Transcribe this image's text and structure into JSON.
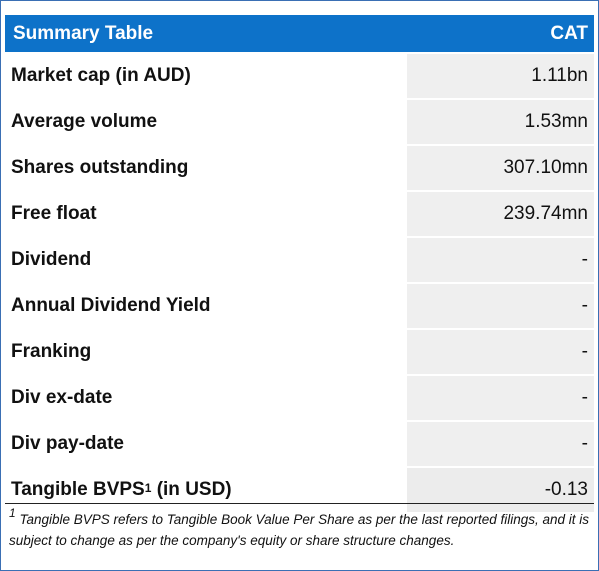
{
  "header": {
    "title": "Summary Table",
    "ticker": "CAT"
  },
  "rows": [
    {
      "label": "Market cap (in AUD)",
      "value": "1.11bn"
    },
    {
      "label": "Average volume",
      "value": "1.53mn"
    },
    {
      "label": "Shares outstanding",
      "value": "307.10mn"
    },
    {
      "label": "Free float",
      "value": "239.74mn"
    },
    {
      "label": "Dividend",
      "value": "-"
    },
    {
      "label": "Annual Dividend Yield",
      "value": "-"
    },
    {
      "label": "Franking",
      "value": "-"
    },
    {
      "label": "Div ex-date",
      "value": "-"
    },
    {
      "label": "Div pay-date",
      "value": "-"
    },
    {
      "label_main": "Tangible BVPS",
      "label_sup": "1",
      "label_suffix": " (in USD)",
      "value": "-0.13"
    }
  ],
  "footnote": {
    "marker": "1",
    "text": " Tangible BVPS refers to Tangible Book Value Per Share as per the last reported filings, and it is subject to change as per the company's equity or share structure changes."
  },
  "colors": {
    "header_bg": "#0d72c9",
    "header_text": "#ffffff",
    "value_bg": "#efefef",
    "border": "#3a6fb4"
  }
}
